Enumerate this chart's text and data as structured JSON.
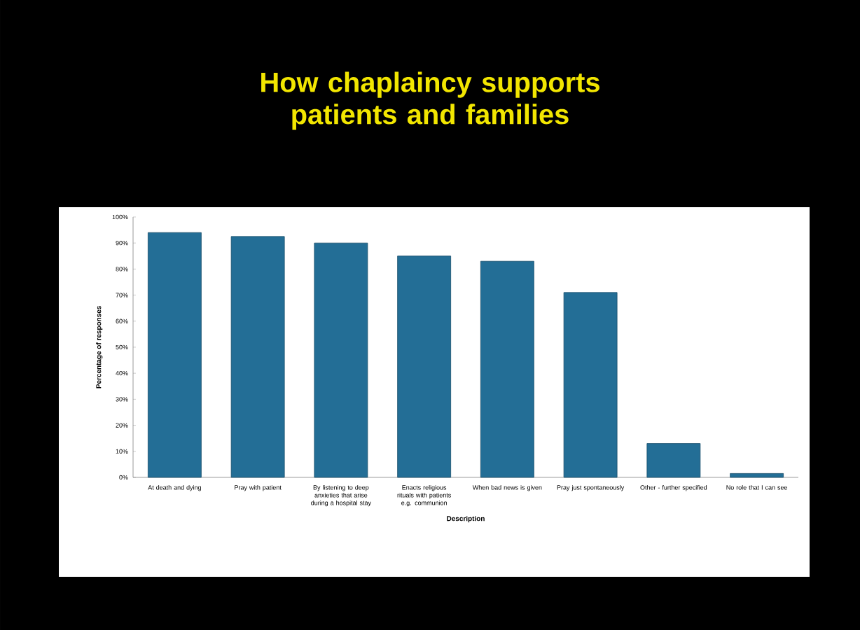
{
  "chart_data": {
    "type": "bar",
    "title": "How chaplaincy supports patients and families",
    "xlabel": "Description",
    "ylabel": "Percentage of responses",
    "categories": [
      "At death and dying",
      "Pray with patient",
      "By listening to deep anxieties that arise during a hospital stay",
      "Enacts religious rituals with patients e.g. communion",
      "When bad news is given",
      "Pray just spontaneously",
      "Other - further specified",
      "No role that I can see"
    ],
    "values": [
      94,
      92.5,
      90,
      85,
      83,
      71,
      13,
      1.5
    ],
    "color": "#236e96",
    "ylim": [
      0,
      100
    ],
    "yticks": [
      {
        "value": 0,
        "label": "0%"
      },
      {
        "value": 10,
        "label": "10%"
      },
      {
        "value": 20,
        "label": "20%"
      },
      {
        "value": 30,
        "label": "30%"
      },
      {
        "value": 40,
        "label": "40%"
      },
      {
        "value": 50,
        "label": "50%"
      },
      {
        "value": 60,
        "label": "60%"
      },
      {
        "value": 70,
        "label": "70%"
      },
      {
        "value": 80,
        "label": "80%"
      },
      {
        "value": 90,
        "label": "90%"
      },
      {
        "value": 100,
        "label": "100%"
      }
    ]
  }
}
